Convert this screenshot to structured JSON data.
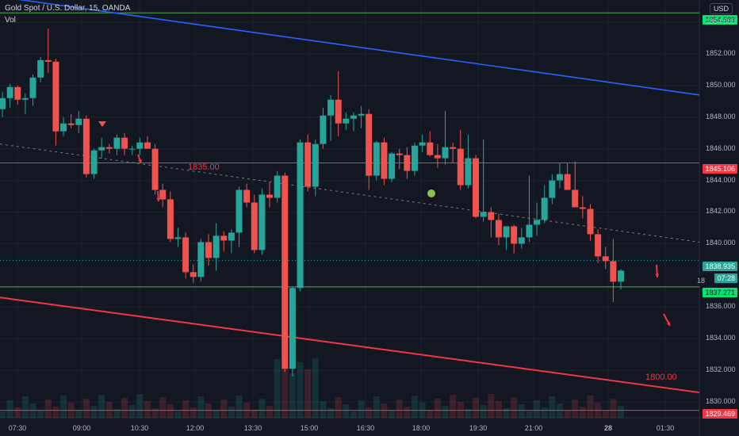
{
  "header": {
    "symbol_line": "Gold Spot / U.S. Dollar, 15, OANDA",
    "vol_label": "Vol",
    "currency": "USD"
  },
  "price_axis": {
    "ticks": [
      "1854.000",
      "1852.000",
      "1850.000",
      "1848.000",
      "1846.000",
      "1844.000",
      "1842.000",
      "1840.000",
      "1836.000",
      "1834.000",
      "1832.000",
      "1830.000"
    ],
    "labels": {
      "top_green": "1854.583",
      "red_line": "1845.106",
      "current": "1838.935",
      "countdown": "07:28",
      "partial": "18",
      "green_low": "1837.271",
      "bottom_red": "1829.469"
    }
  },
  "time_axis": [
    "07:30",
    "09:00",
    "10:30",
    "12:00",
    "13:30",
    "15:00",
    "16:30",
    "18:00",
    "19:30",
    "21:00",
    "28",
    "01:30"
  ],
  "annotations": {
    "level_1835": "1835.00",
    "level_1800": "1800.00"
  },
  "colors": {
    "bull": "#26a69a",
    "bear": "#ef5350",
    "bg": "#131722",
    "blue_trend": "#2962ff",
    "green_line": "#4caf50",
    "red_line": "#f23645"
  },
  "chart_data": {
    "type": "candlestick",
    "title": "Gold Spot / U.S. Dollar, 15, OANDA",
    "ylim": [
      1829.0,
      1855.4
    ],
    "candles_ohlc": [
      [
        1848.5,
        1849.6,
        1848.0,
        1849.2
      ],
      [
        1849.2,
        1850.1,
        1848.6,
        1849.9
      ],
      [
        1849.9,
        1850.0,
        1848.8,
        1849.1
      ],
      [
        1849.1,
        1849.5,
        1848.2,
        1849.2
      ],
      [
        1849.2,
        1850.7,
        1848.7,
        1850.5
      ],
      [
        1850.5,
        1851.8,
        1850.2,
        1851.6
      ],
      [
        1851.6,
        1853.6,
        1850.8,
        1851.5
      ],
      [
        1851.5,
        1851.7,
        1846.2,
        1847.1
      ],
      [
        1847.1,
        1848.0,
        1846.8,
        1847.6
      ],
      [
        1847.6,
        1848.2,
        1847.3,
        1847.5
      ],
      [
        1847.5,
        1848.4,
        1847.0,
        1847.9
      ],
      [
        1847.9,
        1848.1,
        1844.2,
        1844.4
      ],
      [
        1844.4,
        1846.0,
        1844.1,
        1845.9
      ],
      [
        1845.9,
        1846.7,
        1845.4,
        1846.1
      ],
      [
        1846.1,
        1846.3,
        1845.7,
        1846.0
      ],
      [
        1846.0,
        1846.9,
        1845.6,
        1846.7
      ],
      [
        1846.7,
        1847.0,
        1845.6,
        1846.0
      ],
      [
        1846.0,
        1846.2,
        1845.6,
        1846.0
      ],
      [
        1846.0,
        1846.7,
        1845.6,
        1846.4
      ],
      [
        1846.4,
        1846.8,
        1846.0,
        1846.0
      ],
      [
        1846.0,
        1846.3,
        1843.1,
        1843.4
      ],
      [
        1843.4,
        1843.8,
        1842.3,
        1842.8
      ],
      [
        1842.8,
        1843.3,
        1840.1,
        1840.3
      ],
      [
        1840.3,
        1841.0,
        1839.8,
        1840.4
      ],
      [
        1840.4,
        1840.7,
        1837.8,
        1838.2
      ],
      [
        1838.2,
        1838.7,
        1837.5,
        1837.9
      ],
      [
        1837.9,
        1840.3,
        1837.6,
        1840.1
      ],
      [
        1840.1,
        1840.6,
        1838.6,
        1839.1
      ],
      [
        1839.1,
        1841.3,
        1838.3,
        1840.5
      ],
      [
        1840.5,
        1840.8,
        1839.5,
        1840.2
      ],
      [
        1840.2,
        1840.9,
        1839.4,
        1840.7
      ],
      [
        1840.7,
        1843.6,
        1839.8,
        1843.4
      ],
      [
        1843.4,
        1843.8,
        1842.3,
        1842.6
      ],
      [
        1842.6,
        1843.1,
        1839.4,
        1839.6
      ],
      [
        1839.6,
        1843.5,
        1839.3,
        1843.1
      ],
      [
        1843.1,
        1843.9,
        1842.3,
        1842.9
      ],
      [
        1842.9,
        1844.6,
        1842.6,
        1844.3
      ],
      [
        1844.3,
        1844.5,
        1831.9,
        1832.1
      ],
      [
        1832.1,
        1837.3,
        1831.6,
        1837.2
      ],
      [
        1837.2,
        1846.6,
        1837.0,
        1846.4
      ],
      [
        1846.4,
        1846.9,
        1843.3,
        1843.6
      ],
      [
        1843.6,
        1846.6,
        1843.0,
        1846.3
      ],
      [
        1846.3,
        1848.6,
        1846.0,
        1848.1
      ],
      [
        1848.1,
        1849.4,
        1846.5,
        1849.1
      ],
      [
        1849.1,
        1850.9,
        1846.8,
        1847.6
      ],
      [
        1847.6,
        1848.3,
        1847.2,
        1847.9
      ],
      [
        1847.9,
        1848.3,
        1847.1,
        1848.1
      ],
      [
        1848.1,
        1848.7,
        1847.3,
        1848.2
      ],
      [
        1848.2,
        1848.5,
        1843.4,
        1844.3
      ],
      [
        1844.3,
        1846.5,
        1844.0,
        1846.4
      ],
      [
        1846.4,
        1846.7,
        1843.7,
        1844.1
      ],
      [
        1844.1,
        1845.8,
        1843.9,
        1845.7
      ],
      [
        1845.7,
        1846.0,
        1844.7,
        1845.6
      ],
      [
        1845.6,
        1846.1,
        1844.1,
        1844.6
      ],
      [
        1844.6,
        1846.4,
        1844.3,
        1846.2
      ],
      [
        1846.2,
        1846.9,
        1845.8,
        1846.4
      ],
      [
        1846.4,
        1847.1,
        1845.5,
        1845.6
      ],
      [
        1845.6,
        1846.3,
        1844.8,
        1845.4
      ],
      [
        1845.4,
        1848.4,
        1845.0,
        1846.1
      ],
      [
        1846.1,
        1846.4,
        1845.1,
        1846.0
      ],
      [
        1846.0,
        1847.2,
        1843.4,
        1843.7
      ],
      [
        1843.7,
        1846.9,
        1843.5,
        1845.4
      ],
      [
        1845.4,
        1845.6,
        1841.6,
        1841.7
      ],
      [
        1841.7,
        1846.6,
        1841.4,
        1842.0
      ],
      [
        1842.0,
        1842.3,
        1840.4,
        1841.5
      ],
      [
        1841.5,
        1841.9,
        1839.9,
        1840.4
      ],
      [
        1840.4,
        1841.1,
        1839.6,
        1841.1
      ],
      [
        1841.1,
        1841.2,
        1839.4,
        1840.0
      ],
      [
        1840.0,
        1841.0,
        1839.7,
        1840.4
      ],
      [
        1840.4,
        1844.3,
        1840.1,
        1841.2
      ],
      [
        1841.2,
        1842.6,
        1840.5,
        1841.5
      ],
      [
        1841.5,
        1843.7,
        1841.3,
        1842.9
      ],
      [
        1842.9,
        1844.4,
        1842.5,
        1844.0
      ],
      [
        1844.0,
        1845.1,
        1843.5,
        1844.4
      ],
      [
        1844.4,
        1845.1,
        1843.7,
        1843.4
      ],
      [
        1843.4,
        1845.2,
        1843.1,
        1842.3
      ],
      [
        1842.3,
        1843.0,
        1841.6,
        1842.2
      ],
      [
        1842.2,
        1842.5,
        1840.2,
        1840.6
      ],
      [
        1840.6,
        1840.9,
        1838.8,
        1839.2
      ],
      [
        1839.2,
        1839.8,
        1838.4,
        1838.9
      ],
      [
        1838.9,
        1840.3,
        1836.3,
        1837.6
      ],
      [
        1837.6,
        1838.4,
        1837.1,
        1838.3
      ]
    ],
    "lines": [
      {
        "name": "blue trend",
        "from": [
          "07:30",
          1855.6
        ],
        "to": [
          "01:30+",
          1849.4
        ]
      },
      {
        "name": "red lower channel",
        "from": [
          "07:30",
          1836.6
        ],
        "to": [
          "01:30+",
          1830.6
        ]
      }
    ],
    "horizontal_levels": [
      1854.583,
      1845.106,
      1838.935,
      1837.271,
      1829.469
    ],
    "grid": true
  }
}
